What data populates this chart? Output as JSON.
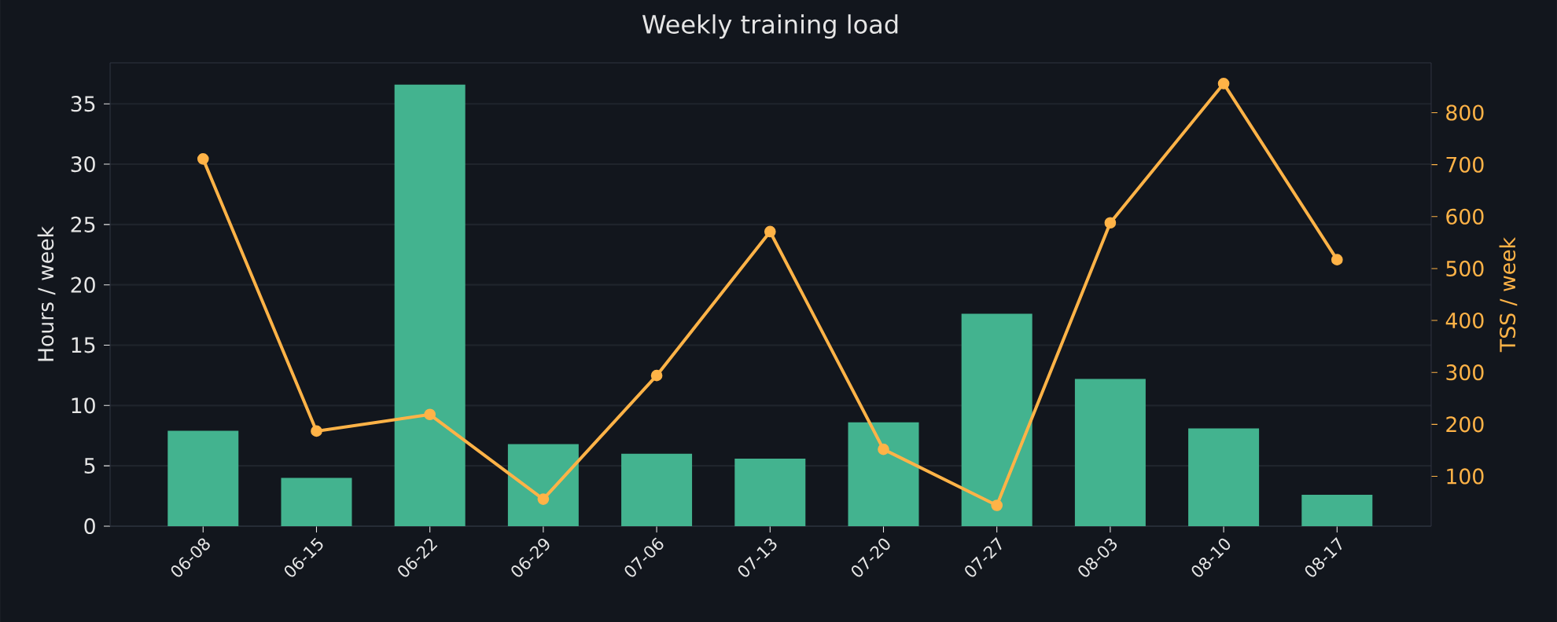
{
  "chart_data": {
    "type": "bar",
    "title": "Weekly training load",
    "ylabel": "Hours / week",
    "y2label": "TSS / week",
    "categories": [
      "06-08",
      "06-15",
      "06-22",
      "06-29",
      "07-06",
      "07-13",
      "07-20",
      "07-27",
      "08-03",
      "08-10",
      "08-17"
    ],
    "series": [
      {
        "color": "#43b38f",
        "values": [
          7.9,
          4.0,
          36.6,
          6.8,
          6.0,
          5.6,
          8.6,
          17.6,
          12.2,
          8.1,
          2.6
        ]
      },
      {
        "type": "line",
        "axis": "y2",
        "color": "#ffb347",
        "marker": "circle",
        "values": [
          711,
          187,
          219,
          56,
          294,
          571,
          152,
          44,
          588,
          856,
          517
        ]
      }
    ],
    "ylim": [
      0,
      38.4
    ],
    "yticks": [
      0,
      5,
      10,
      15,
      20,
      25,
      30,
      35
    ],
    "y2lim": [
      4,
      896
    ],
    "y2ticks": [
      100,
      200,
      300,
      400,
      500,
      600,
      700,
      800
    ],
    "grid": "y"
  }
}
